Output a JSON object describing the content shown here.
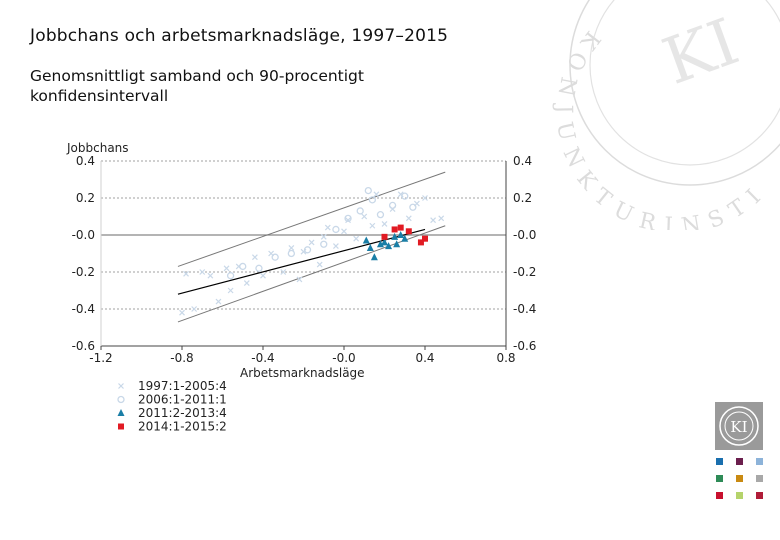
{
  "header": {
    "title": "Jobbchans och arbetsmarknadsläge, 1997–2015",
    "subtitle": "Genomsnittligt samband och 90-procentigt konfidensintervall"
  },
  "branding": {
    "watermark_text": "KONJUNKTURINSTITUTET",
    "logo_text": "KI"
  },
  "colors": {
    "series_1997": "#c9d8e8",
    "series_2006": "#c9d8e8",
    "series_2011": "#1a7ea6",
    "series_2014": "#e11b23",
    "fit_line": "#000000",
    "ci_line": "#777777",
    "zero_line": "#888888",
    "grid": "#a0a0a0"
  },
  "chart_data": {
    "type": "scatter",
    "ylabel": "Jobbchans",
    "xlabel": "Arbetsmarknadsläge",
    "xlim": [
      -1.2,
      0.8
    ],
    "ylim": [
      -0.6,
      0.4
    ],
    "x_ticks": [
      "-1.2",
      "-0.8",
      "-0.4",
      "-0.0",
      "0.4",
      "0.8"
    ],
    "x_tick_values": [
      -1.2,
      -0.8,
      -0.4,
      0.0,
      0.4,
      0.8
    ],
    "y_ticks": [
      "0.4",
      "0.2",
      "-0.0",
      "-0.2",
      "-0.4",
      "-0.6"
    ],
    "y_tick_values": [
      0.4,
      0.2,
      0.0,
      -0.2,
      -0.4,
      -0.6
    ],
    "grid": "dashed horizontal",
    "legend_position": "bottom-left",
    "fit": {
      "x": [
        -0.82,
        0.4
      ],
      "y": [
        -0.32,
        0.03
      ]
    },
    "ci_upper": {
      "x": [
        -0.82,
        0.5
      ],
      "y": [
        -0.17,
        0.34
      ]
    },
    "ci_lower": {
      "x": [
        -0.82,
        0.5
      ],
      "y": [
        -0.47,
        0.05
      ]
    },
    "series": [
      {
        "name": "1997:1-2005:4",
        "marker": "x",
        "x": [
          -0.8,
          -0.78,
          -0.74,
          -0.7,
          -0.66,
          -0.62,
          -0.58,
          -0.56,
          -0.52,
          -0.48,
          -0.44,
          -0.4,
          -0.36,
          -0.3,
          -0.26,
          -0.22,
          -0.2,
          -0.16,
          -0.12,
          -0.1,
          -0.08,
          -0.04,
          0.0,
          0.02,
          0.06,
          0.1,
          0.14,
          0.16,
          0.2,
          0.24,
          0.28,
          0.32,
          0.36,
          0.4,
          0.44,
          0.48
        ],
        "y": [
          -0.42,
          -0.21,
          -0.4,
          -0.2,
          -0.22,
          -0.36,
          -0.18,
          -0.3,
          -0.17,
          -0.26,
          -0.12,
          -0.22,
          -0.1,
          -0.2,
          -0.07,
          -0.24,
          -0.09,
          -0.04,
          -0.16,
          -0.01,
          0.04,
          -0.06,
          0.02,
          0.08,
          -0.02,
          0.1,
          0.05,
          0.22,
          0.06,
          0.14,
          0.22,
          0.09,
          0.17,
          0.2,
          0.08,
          0.09
        ]
      },
      {
        "name": "2006:1-2011:1",
        "marker": "o",
        "x": [
          -0.56,
          -0.5,
          -0.42,
          -0.34,
          -0.26,
          -0.18,
          -0.1,
          -0.04,
          0.02,
          0.08,
          0.12,
          0.14,
          0.18,
          0.24,
          0.3,
          0.34
        ],
        "y": [
          -0.22,
          -0.17,
          -0.18,
          -0.12,
          -0.1,
          -0.08,
          -0.05,
          0.03,
          0.09,
          0.13,
          0.24,
          0.19,
          0.11,
          0.16,
          0.21,
          0.15
        ]
      },
      {
        "name": "2011:2-2013:4",
        "marker": "triangle",
        "x": [
          0.11,
          0.13,
          0.15,
          0.18,
          0.2,
          0.22,
          0.25,
          0.26,
          0.28,
          0.3
        ],
        "y": [
          -0.03,
          -0.07,
          -0.12,
          -0.05,
          -0.04,
          -0.06,
          -0.01,
          -0.05,
          0.0,
          -0.02
        ]
      },
      {
        "name": "2014:1-2015:2",
        "marker": "square",
        "x": [
          0.2,
          0.25,
          0.28,
          0.32,
          0.38,
          0.4
        ],
        "y": [
          -0.01,
          0.03,
          0.04,
          0.02,
          -0.04,
          -0.02
        ]
      }
    ]
  }
}
